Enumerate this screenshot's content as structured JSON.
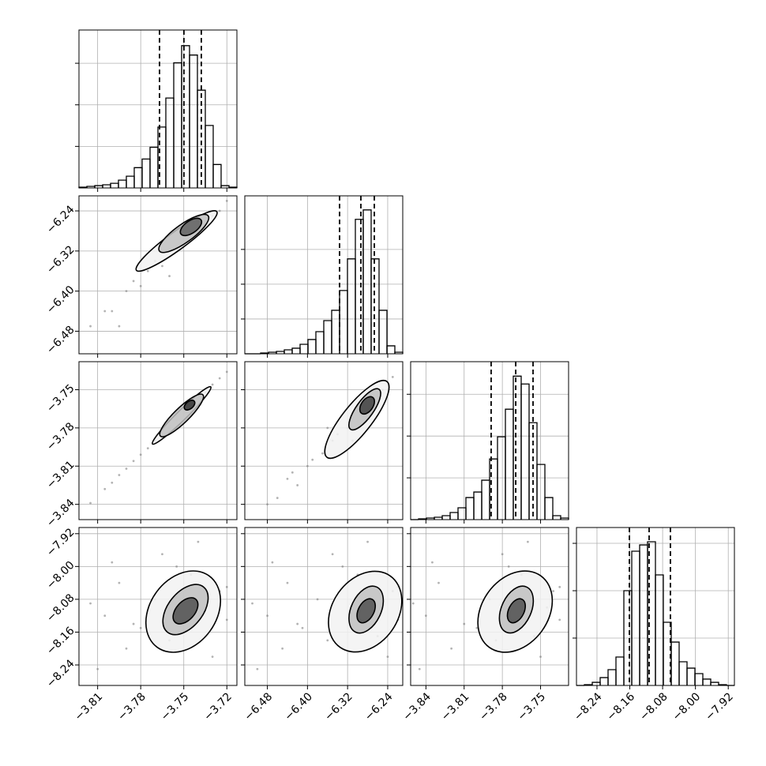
{
  "chart_data": {
    "type": "corner",
    "hist_color": "#000000",
    "point_color": "#808080",
    "grid": true,
    "params": [
      {
        "lim": [
          -3.823,
          -3.713
        ],
        "ticks": [
          {
            "value": -3.81,
            "label": "−3.81"
          },
          {
            "value": -3.78,
            "label": "−3.78"
          },
          {
            "value": -3.75,
            "label": "−3.75"
          },
          {
            "value": -3.72,
            "label": "−3.72"
          }
        ],
        "hist": {
          "bins": [
            -3.823,
            -3.8175,
            -3.812,
            -3.8065,
            -3.801,
            -3.7955,
            -3.79,
            -3.7845,
            -3.779,
            -3.7735,
            -3.768,
            -3.7625,
            -3.757,
            -3.7515,
            -3.746,
            -3.7405,
            -3.735,
            -3.7295,
            -3.724,
            -3.7185,
            -3.713
          ],
          "counts": [
            9,
            19,
            28,
            38,
            56,
            94,
            141,
            244,
            348,
            489,
            733,
            1082,
            1505,
            1712,
            1599,
            1176,
            752,
            282,
            28,
            9
          ],
          "ylim": [
            0,
            1900
          ],
          "yticks": [
            500,
            1000,
            1500
          ]
        },
        "quantiles": [
          -3.7669,
          -3.7499,
          -3.7378
        ],
        "joint": []
      },
      {
        "lim": [
          -6.525,
          -6.21
        ],
        "ticks": [
          {
            "value": -6.48,
            "label": "−6.48"
          },
          {
            "value": -6.4,
            "label": "−6.40"
          },
          {
            "value": -6.32,
            "label": "−6.32"
          },
          {
            "value": -6.24,
            "label": "−6.24"
          }
        ],
        "hist": {
          "bins": [
            -6.525,
            -6.50925,
            -6.4935,
            -6.47775,
            -6.462,
            -6.44625,
            -6.4305,
            -6.41475,
            -6.399,
            -6.38325,
            -6.3675,
            -6.35175,
            -6.336,
            -6.32025,
            -6.3045,
            -6.28875,
            -6.273,
            -6.25725,
            -6.2415,
            -6.22575,
            -6.21
          ],
          "counts": [
            0,
            0,
            11,
            23,
            34,
            57,
            80,
            136,
            205,
            318,
            477,
            625,
            909,
            1364,
            1932,
            2068,
            1364,
            625,
            114,
            23
          ],
          "ylim": [
            0,
            2270
          ],
          "yticks": [
            500,
            1000,
            1500
          ]
        },
        "quantiles": [
          -6.336,
          -6.2935,
          -6.2667
        ],
        "joint": [
          {
            "points": {
              "x": [
                -3.815,
                -3.805,
                -3.8,
                -3.79,
                -3.785,
                -3.78,
                -3.775,
                -3.77,
                -3.765,
                -3.76,
                -3.755,
                -3.75,
                -3.745,
                -3.74,
                -3.735,
                -3.73,
                -3.725,
                -3.72,
                -3.795,
                -3.76
              ],
              "y": [
                -6.47,
                -6.44,
                -6.44,
                -6.4,
                -6.38,
                -6.39,
                -6.36,
                -6.34,
                -6.35,
                -6.32,
                -6.31,
                -6.3,
                -6.28,
                -6.27,
                -6.26,
                -6.25,
                -6.24,
                -6.22,
                -6.47,
                -6.37
              ]
            },
            "contours": [
              {
                "center": [
                  -3.755,
                  -6.3
                ],
                "end": [
                  -3.727,
                  -6.2415
                ],
                "ratio": 0.18,
                "fill": "#f2f2f2"
              },
              {
                "center": [
                  -3.75,
                  -6.285
                ],
                "end": [
                  -3.733,
                  -6.25
                ],
                "ratio": 0.3,
                "fill": "#c0c0c0"
              },
              {
                "center": [
                  -3.745,
                  -6.272
                ],
                "end": [
                  -3.738,
                  -6.258
                ],
                "ratio": 0.5,
                "fill": "#606060"
              }
            ]
          }
        ]
      },
      {
        "lim": [
          -3.852,
          -3.728
        ],
        "ticks": [
          {
            "value": -3.84,
            "label": "−3.84"
          },
          {
            "value": -3.81,
            "label": "−3.81"
          },
          {
            "value": -3.78,
            "label": "−3.78"
          },
          {
            "value": -3.75,
            "label": "−3.75"
          }
        ],
        "hist": {
          "bins": [
            -3.852,
            -3.8458,
            -3.8396,
            -3.8334,
            -3.8272,
            -3.821,
            -3.8148,
            -3.8086,
            -3.8024,
            -3.7962,
            -3.79,
            -3.7838,
            -3.7776,
            -3.7714,
            -3.7652,
            -3.759,
            -3.7528,
            -3.7466,
            -3.7404,
            -3.7342,
            -3.728
          ],
          "counts": [
            0,
            9,
            19,
            28,
            47,
            85,
            142,
            264,
            330,
            472,
            726,
            991,
            1321,
            1717,
            1623,
            1160,
            660,
            264,
            47,
            19
          ],
          "ylim": [
            0,
            1890
          ],
          "yticks": [
            500,
            1000,
            1500
          ]
        },
        "quantiles": [
          -3.7888,
          -3.7695,
          -3.7559
        ],
        "joint": [
          {
            "points": {
              "x": [
                -3.815,
                -3.805,
                -3.8,
                -3.79,
                -3.785,
                -3.78,
                -3.775,
                -3.77,
                -3.765,
                -3.76,
                -3.755,
                -3.75,
                -3.745,
                -3.74,
                -3.735,
                -3.73,
                -3.725,
                -3.72,
                -3.795,
                -3.76
              ],
              "y": [
                -3.839,
                -3.828,
                -3.823,
                -3.812,
                -3.806,
                -3.801,
                -3.796,
                -3.79,
                -3.785,
                -3.779,
                -3.774,
                -3.768,
                -3.763,
                -3.757,
                -3.752,
                -3.746,
                -3.741,
                -3.736,
                -3.817,
                -3.78
              ]
            },
            "contours": [
              {
                "center": [
                  -3.7515,
                  -3.7702
                ],
                "end": [
                  -3.7312,
                  -3.7478
                ],
                "ratio": 0.12,
                "fill": "#f2f2f2"
              },
              {
                "center": [
                  -3.7515,
                  -3.7702
                ],
                "end": [
                  -3.7367,
                  -3.754
                ],
                "ratio": 0.25,
                "fill": "#c0c0c0"
              },
              {
                "center": [
                  -3.746,
                  -3.7621
                ],
                "end": [
                  -3.7427,
                  -3.759
                ],
                "ratio": 0.6,
                "fill": "#303030"
              }
            ]
          },
          {
            "points": {
              "x": [
                -6.48,
                -6.46,
                -6.44,
                -6.42,
                -6.4,
                -6.39,
                -6.37,
                -6.35,
                -6.34,
                -6.32,
                -6.3,
                -6.29,
                -6.27,
                -6.26,
                -6.25,
                -6.23,
                -6.43,
                -6.36,
                -6.31,
                -6.28
              ],
              "y": [
                -3.84,
                -3.835,
                -3.82,
                -3.825,
                -3.81,
                -3.805,
                -3.8,
                -3.79,
                -3.785,
                -3.78,
                -3.775,
                -3.77,
                -3.76,
                -3.755,
                -3.75,
                -3.74,
                -3.815,
                -3.78,
                -3.79,
                -3.76
              ]
            },
            "contours": [
              {
                "center": [
                  -6.3014,
                  -3.7733
                ],
                "end": [
                  -6.2415,
                  -3.7436
                ],
                "ratio": 0.3,
                "fill": "#f2f2f2"
              },
              {
                "center": [
                  -6.2857,
                  -3.7654
                ],
                "end": [
                  -6.2573,
                  -3.7497
                ],
                "ratio": 0.35,
                "fill": "#c0c0c0"
              },
              {
                "center": [
                  -6.281,
                  -3.7623
                ],
                "end": [
                  -6.27,
                  -3.756
                ],
                "ratio": 0.6,
                "fill": "#404040"
              }
            ]
          }
        ]
      },
      {
        "lim": [
          -8.29,
          -7.905
        ],
        "ticks": [
          {
            "value": -8.24,
            "label": "−8.24"
          },
          {
            "value": -8.16,
            "label": "−8.16"
          },
          {
            "value": -8.08,
            "label": "−8.08"
          },
          {
            "value": -8.0,
            "label": "−8.00"
          },
          {
            "value": -7.92,
            "label": "−7.92"
          }
        ],
        "hist": {
          "bins": [
            -8.29,
            -8.27075,
            -8.2515,
            -8.23225,
            -8.213,
            -8.19375,
            -8.1745,
            -8.15525,
            -8.136,
            -8.11675,
            -8.0975,
            -8.07825,
            -8.059,
            -8.03975,
            -8.0205,
            -8.00125,
            -7.982,
            -7.96275,
            -7.9435,
            -7.92425,
            -7.905
          ],
          "counts": [
            0,
            8,
            33,
            83,
            167,
            300,
            1000,
            1417,
            1483,
            1517,
            1167,
            667,
            458,
            250,
            183,
            125,
            67,
            33,
            8,
            0
          ],
          "ylim": [
            0,
            1667
          ],
          "yticks": [
            500,
            1000,
            1500
          ]
        },
        "quantiles": [
          -8.161,
          -8.1129,
          -8.061
        ],
        "joint": [
          {
            "points": {
              "x": [
                -3.81,
                -3.79,
                -3.76,
                -3.78,
                -3.72,
                -3.805,
                -3.735,
                -3.77,
                -3.725,
                -3.795,
                -3.745,
                -3.755,
                -3.765,
                -3.74,
                -3.73,
                -3.815,
                -3.785,
                -3.72,
                -3.8,
                -3.735
              ],
              "y": [
                -8.25,
                -8.2,
                -8.18,
                -8.15,
                -8.13,
                -8.12,
                -8.1,
                -8.08,
                -8.06,
                -8.04,
                -8.02,
                -8.0,
                -7.97,
                -7.94,
                -8.22,
                -8.09,
                -8.14,
                -8.05,
                -7.99,
                -8.17
              ]
            },
            "contours": [
              {
                "center": [
                  -3.7504,
                  -8.11
                ],
                "end": [
                  -3.7323,
                  -8.023
                ],
                "ratio": 0.75,
                "fill": "#f2f2f2"
              },
              {
                "center": [
                  -3.7488,
                  -8.105
                ],
                "end": [
                  -3.7362,
                  -8.05
                ],
                "ratio": 0.6,
                "fill": "#c0c0c0"
              },
              {
                "center": [
                  -3.7488,
                  -8.108
                ],
                "end": [
                  -3.7416,
                  -8.08
                ],
                "ratio": 0.6,
                "fill": "#505050"
              }
            ]
          },
          {
            "points": {
              "x": [
                -6.5,
                -6.45,
                -6.36,
                -6.41,
                -6.22,
                -6.48,
                -6.25,
                -6.38,
                -6.23,
                -6.44,
                -6.3,
                -6.33,
                -6.35,
                -6.28,
                -6.24,
                -6.51,
                -6.42,
                -6.22,
                -6.47,
                -6.26
              ],
              "y": [
                -8.25,
                -8.2,
                -8.18,
                -8.15,
                -8.13,
                -8.12,
                -8.1,
                -8.08,
                -8.06,
                -8.04,
                -8.02,
                -8.0,
                -7.97,
                -7.94,
                -8.22,
                -8.09,
                -8.14,
                -8.05,
                -7.99,
                -8.17
              ]
            },
            "contours": [
              {
                "center": [
                  -6.285,
                  -8.11
                ],
                "end": [
                  -6.235,
                  -8.023
                ],
                "ratio": 0.75,
                "fill": "#f2f2f2"
              },
              {
                "center": [
                  -6.283,
                  -8.105
                ],
                "end": [
                  -6.262,
                  -8.05
                ],
                "ratio": 0.6,
                "fill": "#c0c0c0"
              },
              {
                "center": [
                  -6.283,
                  -8.108
                ],
                "end": [
                  -6.271,
                  -8.08
                ],
                "ratio": 0.6,
                "fill": "#505050"
              }
            ]
          },
          {
            "points": {
              "x": [
                -3.845,
                -3.82,
                -3.785,
                -3.8,
                -3.735,
                -3.84,
                -3.745,
                -3.79,
                -3.74,
                -3.83,
                -3.765,
                -3.775,
                -3.78,
                -3.76,
                -3.75,
                -3.85,
                -3.81,
                -3.735,
                -3.835,
                -3.755
              ],
              "y": [
                -8.25,
                -8.2,
                -8.18,
                -8.15,
                -8.13,
                -8.12,
                -8.1,
                -8.08,
                -8.06,
                -8.04,
                -8.02,
                -8.0,
                -7.97,
                -7.94,
                -8.22,
                -8.09,
                -8.14,
                -8.05,
                -7.99,
                -8.17
              ]
            },
            "contours": [
              {
                "center": [
                  -3.77,
                  -8.11
                ],
                "end": [
                  -3.7497,
                  -8.023
                ],
                "ratio": 0.75,
                "fill": "#f2f2f2"
              },
              {
                "center": [
                  -3.769,
                  -8.105
                ],
                "end": [
                  -3.761,
                  -8.05
                ],
                "ratio": 0.6,
                "fill": "#c0c0c0"
              },
              {
                "center": [
                  -3.769,
                  -8.108
                ],
                "end": [
                  -3.7645,
                  -8.08
                ],
                "ratio": 0.6,
                "fill": "#505050"
              }
            ]
          }
        ]
      }
    ]
  }
}
